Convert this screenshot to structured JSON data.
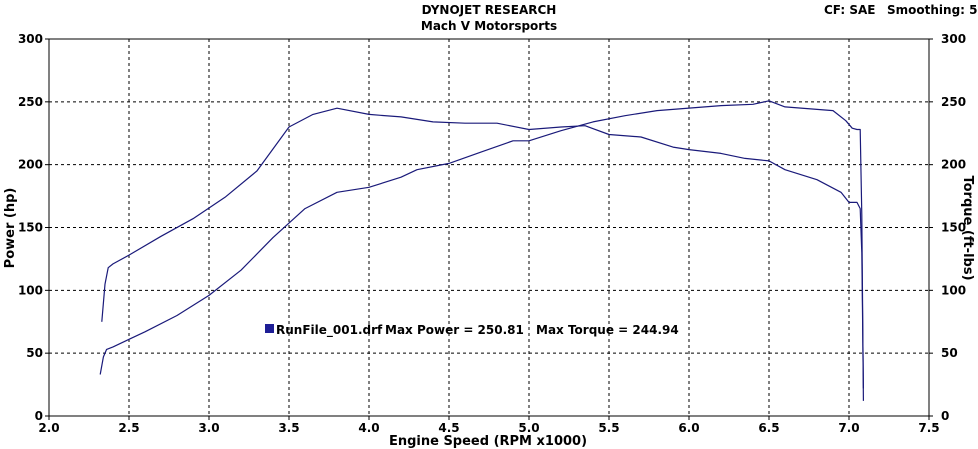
{
  "header": {
    "title": "DYNOJET RESEARCH",
    "subtitle": "Mach V Motorsports",
    "cf_label": "CF: SAE",
    "smoothing_label": "Smoothing: 5"
  },
  "colors": {
    "background": "#ffffff",
    "line": "#1a1a7a",
    "grid": "#000000",
    "legend_swatch": "#1e1e96"
  },
  "chart_data": {
    "type": "line",
    "xlabel": "Engine Speed (RPM x1000)",
    "ylabel_left": "Power (hp)",
    "ylabel_right": "Torque (ft-lbs)",
    "xlim": [
      2.0,
      7.5
    ],
    "ylim": [
      0,
      300
    ],
    "x_ticks": [
      "2.0",
      "2.5",
      "3.0",
      "3.5",
      "4.0",
      "4.5",
      "5.0",
      "5.5",
      "6.0",
      "6.5",
      "7.0",
      "7.5"
    ],
    "y_ticks_left": [
      "0",
      "50",
      "100",
      "150",
      "200",
      "250",
      "300"
    ],
    "y_ticks_right": [
      "0",
      "50",
      "100",
      "150",
      "200",
      "250",
      "300"
    ],
    "grid": true,
    "legend_placement": "center-left",
    "legend": {
      "run": "RunFile_001.drf",
      "max_power": "Max Power = 250.81",
      "max_torque": "Max Torque = 244.94"
    },
    "series": [
      {
        "points": [
          [
            2.32,
            33
          ],
          [
            2.34,
            47
          ],
          [
            2.36,
            53
          ],
          [
            2.4,
            55
          ],
          [
            2.5,
            61
          ],
          [
            2.6,
            67
          ],
          [
            2.8,
            80
          ],
          [
            3.0,
            96
          ],
          [
            3.2,
            116
          ],
          [
            3.4,
            142
          ],
          [
            3.6,
            165
          ],
          [
            3.8,
            178
          ],
          [
            4.0,
            182
          ],
          [
            4.2,
            190
          ],
          [
            4.3,
            196
          ],
          [
            4.5,
            201
          ],
          [
            4.7,
            210
          ],
          [
            4.9,
            219
          ],
          [
            5.0,
            219
          ],
          [
            5.2,
            227
          ],
          [
            5.4,
            234
          ],
          [
            5.6,
            239
          ],
          [
            5.8,
            243
          ],
          [
            6.0,
            245
          ],
          [
            6.2,
            247
          ],
          [
            6.4,
            248
          ],
          [
            6.5,
            250.8
          ],
          [
            6.6,
            246
          ],
          [
            6.8,
            244
          ],
          [
            6.9,
            243
          ],
          [
            6.98,
            235
          ],
          [
            7.02,
            229
          ],
          [
            7.05,
            228
          ],
          [
            7.07,
            228
          ],
          [
            7.08,
            160
          ],
          [
            7.09,
            12
          ]
        ]
      },
      {
        "points": [
          [
            2.33,
            75
          ],
          [
            2.35,
            105
          ],
          [
            2.37,
            118
          ],
          [
            2.4,
            121
          ],
          [
            2.5,
            128
          ],
          [
            2.7,
            143
          ],
          [
            2.9,
            157
          ],
          [
            3.1,
            174
          ],
          [
            3.3,
            195
          ],
          [
            3.5,
            230
          ],
          [
            3.65,
            240
          ],
          [
            3.8,
            244.9
          ],
          [
            4.0,
            240
          ],
          [
            4.2,
            238
          ],
          [
            4.4,
            234
          ],
          [
            4.6,
            233
          ],
          [
            4.8,
            233
          ],
          [
            5.0,
            228
          ],
          [
            5.2,
            230
          ],
          [
            5.35,
            231
          ],
          [
            5.5,
            224
          ],
          [
            5.7,
            222
          ],
          [
            5.9,
            214
          ],
          [
            6.0,
            212
          ],
          [
            6.2,
            209
          ],
          [
            6.35,
            205
          ],
          [
            6.5,
            203
          ],
          [
            6.6,
            196
          ],
          [
            6.8,
            188
          ],
          [
            6.95,
            178
          ],
          [
            7.0,
            170
          ],
          [
            7.05,
            170
          ],
          [
            7.07,
            165
          ],
          [
            7.08,
            130
          ],
          [
            7.09,
            22
          ]
        ]
      }
    ]
  }
}
